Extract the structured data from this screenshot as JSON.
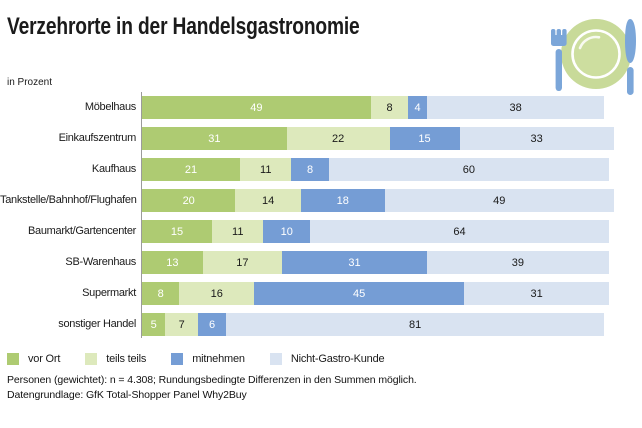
{
  "header": {
    "title": "Verzehrorte in der Handelsgastronomie",
    "subtitle": "in Prozent"
  },
  "icons": {
    "top_right": "fork-plate-knife-icon",
    "icon_blue": "#7ba6d9",
    "icon_green": "#c8da99"
  },
  "chart_data": {
    "type": "bar",
    "orientation": "horizontal",
    "stacked": true,
    "unit": "percent",
    "xlim": [
      0,
      100
    ],
    "grid": false,
    "legend_position": "bottom",
    "categories": [
      "Möbelhaus",
      "Einkaufszentrum",
      "Kaufhaus",
      "Tankstelle/Bahnhof/Flughafen",
      "Baumarkt/Gartencenter",
      "SB-Warenhaus",
      "Supermarkt",
      "sonstiger Handel"
    ],
    "series": [
      {
        "name": "vor Ort",
        "color": "#aecb72",
        "label_color": "#ffffff",
        "values": [
          49,
          31,
          21,
          20,
          15,
          13,
          8,
          5
        ]
      },
      {
        "name": "teils teils",
        "color": "#dde9bc",
        "label_color": "#1a1a1a",
        "values": [
          8,
          22,
          11,
          14,
          11,
          17,
          16,
          7
        ]
      },
      {
        "name": "mitnehmen",
        "color": "#759dd5",
        "label_color": "#ffffff",
        "values": [
          4,
          15,
          8,
          18,
          10,
          31,
          45,
          6
        ]
      },
      {
        "name": "Nicht-Gastro-Kunde",
        "color": "#d9e3f1",
        "label_color": "#1a1a1a",
        "values": [
          38,
          33,
          60,
          49,
          64,
          39,
          31,
          81
        ]
      }
    ]
  },
  "footer": {
    "line1": "Personen (gewichtet): n = 4.308; Rundungsbedingte Differenzen in den Summen möglich.",
    "line2": "Datengrundlage: GfK Total-Shopper Panel Why2Buy"
  }
}
